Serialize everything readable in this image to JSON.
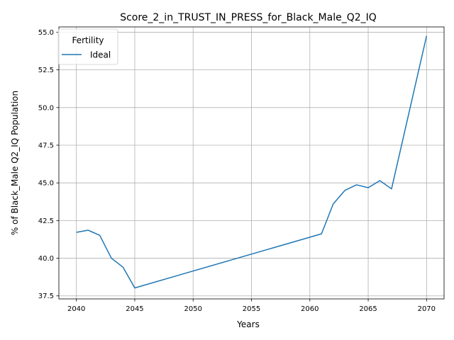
{
  "chart_data": {
    "type": "line",
    "title": "Score_2_in_TRUST_IN_PRESS_for_Black_Male_Q2_IQ",
    "xlabel": "Years",
    "ylabel": "% of Black_Male Q2_IQ Population",
    "xlim": [
      2038.5,
      2071.5
    ],
    "ylim": [
      37.3,
      55.35
    ],
    "xticks": [
      2040,
      2045,
      2050,
      2055,
      2060,
      2065,
      2070
    ],
    "yticks": [
      37.5,
      40.0,
      42.5,
      45.0,
      47.5,
      50.0,
      52.5,
      55.0
    ],
    "xtick_labels": [
      "2040",
      "2045",
      "2050",
      "2055",
      "2060",
      "2065",
      "2070"
    ],
    "ytick_labels": [
      "37.5",
      "40.0",
      "42.5",
      "45.0",
      "47.5",
      "50.0",
      "52.5",
      "55.0"
    ],
    "grid": true,
    "legend": {
      "title": "Fertility",
      "placement": "upper-left"
    },
    "series": [
      {
        "name": "Ideal",
        "color": "#1f77b4",
        "x": [
          2040,
          2041,
          2042,
          2043,
          2044,
          2045,
          2061,
          2062,
          2063,
          2064,
          2065,
          2066,
          2067,
          2070
        ],
        "y": [
          41.72,
          41.86,
          41.52,
          40.0,
          39.4,
          38.03,
          41.62,
          43.6,
          44.5,
          44.87,
          44.68,
          45.15,
          44.6,
          54.75
        ]
      }
    ]
  }
}
